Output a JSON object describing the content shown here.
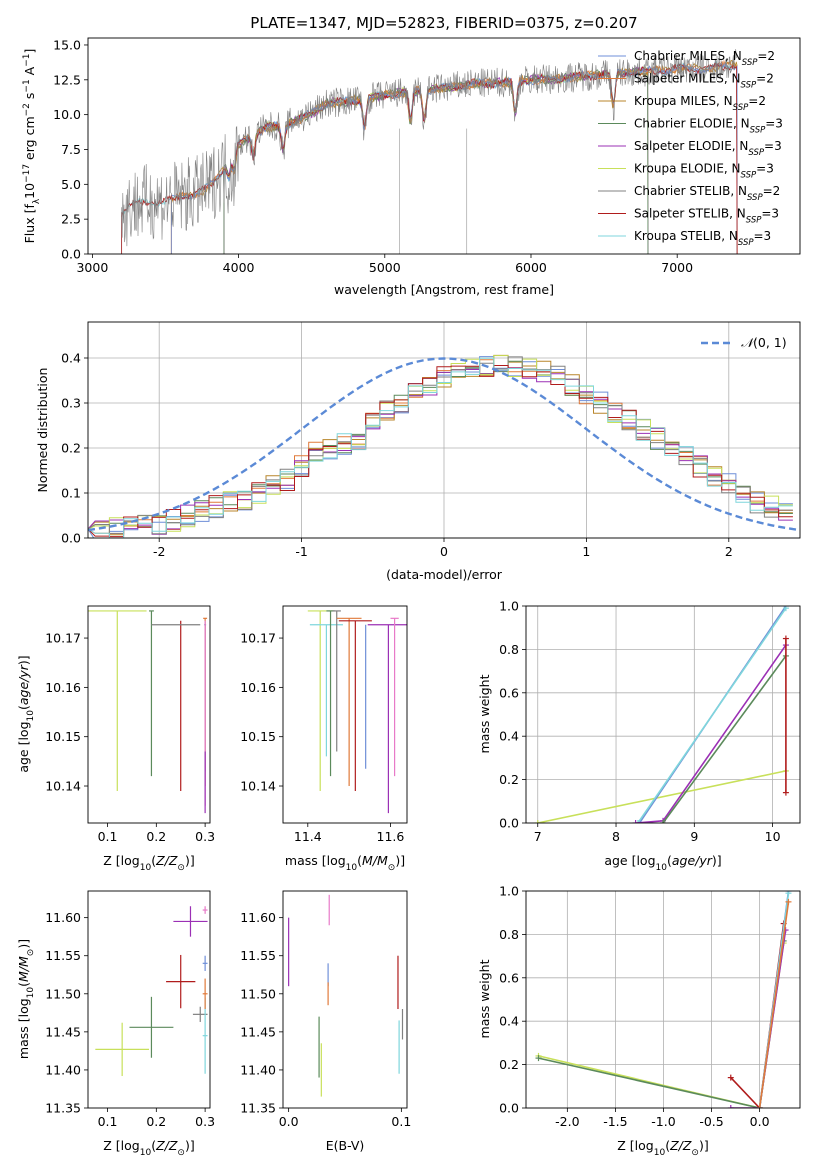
{
  "figure_title": "PLATE=1347, MJD=52823, FIBERID=0375, z=0.207",
  "colors": {
    "Chabrier MILES": "#6f8fd8",
    "Salpeter MILES": "#e07a3a",
    "Kroupa MILES": "#b8862b",
    "Chabrier ELODIE": "#5b8a5b",
    "Salpeter ELODIE": "#9b30b5",
    "Kroupa ELODIE": "#c8e05a",
    "Chabrier STELIB": "#808080",
    "Salpeter STELIB": "#b01c1c",
    "Kroupa STELIB": "#7fd6dc",
    "Extra pink": "#e87ac8",
    "Normal": "#5b8ad6"
  },
  "chart_data": [
    {
      "id": "spectrum",
      "type": "line",
      "title": "PLATE=1347, MJD=52823, FIBERID=0375, z=0.207",
      "xlabel": "wavelength [Angstrom, rest frame]",
      "ylabel": "Flux [f_λ 10^-17 erg cm^-2 s^-1 A^-1]",
      "xlim": [
        2970,
        7840
      ],
      "ylim": [
        0,
        15.5
      ],
      "xticks": [
        3000,
        4000,
        5000,
        6000,
        7000
      ],
      "yticks": [
        0.0,
        2.5,
        5.0,
        7.5,
        10.0,
        12.5,
        15.0
      ],
      "legend_position": "top-right",
      "legend": [
        "Chabrier MILES, N_SSP=2",
        "Salpeter MILES, N_SSP=2",
        "Kroupa MILES, N_SSP=2",
        "Chabrier ELODIE, N_SSP=3",
        "Salpeter ELODIE, N_SSP=3",
        "Kroupa ELODIE, N_SSP=3",
        "Chabrier STELIB, N_SSP=2",
        "Salpeter STELIB, N_SSP=3",
        "Kroupa STELIB, N_SSP=3"
      ],
      "continuum": {
        "x": [
          3200,
          3250,
          3300,
          3400,
          3500,
          3600,
          3700,
          3800,
          3900,
          4000,
          4100,
          4200,
          4300,
          4400,
          4500,
          4600,
          4800,
          5000,
          5200,
          5400,
          5600,
          5800,
          6000,
          6200,
          6400,
          6600,
          6800,
          7000,
          7200,
          7400,
          7500
        ],
        "y": [
          3.0,
          3.4,
          3.6,
          3.8,
          3.7,
          4.1,
          4.3,
          4.8,
          6.1,
          7.9,
          8.6,
          9.1,
          9.2,
          9.6,
          10.1,
          10.8,
          11.0,
          11.4,
          11.7,
          11.9,
          12.2,
          12.3,
          12.5,
          12.6,
          12.8,
          13.0,
          13.1,
          13.3,
          13.3,
          13.6,
          13.8
        ]
      },
      "absorption_lines": [
        3934,
        3969,
        4101,
        4304,
        4861,
        5175,
        5270,
        5892,
        6563
      ]
    },
    {
      "id": "residuals",
      "type": "line",
      "xlabel": "(data-model)/error",
      "ylabel": "Normed distribution",
      "xlim": [
        -2.5,
        2.5
      ],
      "ylim": [
        0,
        0.48
      ],
      "xticks": [
        -2,
        -1,
        0,
        1,
        2
      ],
      "yticks": [
        0.0,
        0.1,
        0.2,
        0.3,
        0.4
      ],
      "legend": [
        "N(0,1)"
      ],
      "legend_position": "top-right",
      "normal": {
        "mean": 0,
        "sigma": 1
      },
      "histogram": {
        "x": [
          -2.4,
          -2.3,
          -2.2,
          -2.1,
          -2.0,
          -1.9,
          -1.8,
          -1.7,
          -1.6,
          -1.5,
          -1.4,
          -1.3,
          -1.2,
          -1.1,
          -1.0,
          -0.9,
          -0.8,
          -0.7,
          -0.6,
          -0.5,
          -0.4,
          -0.3,
          -0.2,
          -0.1,
          0.0,
          0.1,
          0.2,
          0.3,
          0.4,
          0.5,
          0.6,
          0.7,
          0.8,
          0.9,
          1.0,
          1.1,
          1.2,
          1.3,
          1.4,
          1.5,
          1.6,
          1.7,
          1.8,
          1.9,
          2.0,
          2.1,
          2.2,
          2.3,
          2.4
        ],
        "y": [
          0.02,
          0.02,
          0.03,
          0.03,
          0.03,
          0.04,
          0.05,
          0.06,
          0.07,
          0.08,
          0.08,
          0.1,
          0.12,
          0.13,
          0.16,
          0.19,
          0.2,
          0.21,
          0.22,
          0.26,
          0.28,
          0.3,
          0.33,
          0.34,
          0.36,
          0.37,
          0.38,
          0.38,
          0.39,
          0.38,
          0.38,
          0.37,
          0.36,
          0.34,
          0.32,
          0.3,
          0.28,
          0.26,
          0.24,
          0.22,
          0.2,
          0.18,
          0.16,
          0.14,
          0.12,
          0.1,
          0.08,
          0.07,
          0.06
        ]
      }
    },
    {
      "id": "age-vs-Z",
      "type": "scatter",
      "xlabel": "Z [log10(Z/Z_sun)]",
      "ylabel": "age [log10(age/yr)]",
      "xlim": [
        0.06,
        0.31
      ],
      "ylim": [
        10.1325,
        10.1765
      ],
      "xticks": [
        0.1,
        0.2,
        0.3
      ],
      "yticks": [
        10.14,
        10.15,
        10.16,
        10.17
      ],
      "points": [
        {
          "model": "Kroupa ELODIE",
          "x": 0.12,
          "xerr": 0.06,
          "y": 10.1755,
          "ylo": 10.139
        },
        {
          "model": "Chabrier ELODIE",
          "x": 0.19,
          "xerr": 0.005,
          "y": 10.1755,
          "ylo": 10.142
        },
        {
          "model": "Salpeter STELIB",
          "x": 0.25,
          "xerr": 0.0,
          "y": 10.1735,
          "ylo": 10.139
        },
        {
          "model": "Chabrier STELIB",
          "x": 0.24,
          "xerr": 0.05,
          "y": 10.1727,
          "ylo": 10.1727
        },
        {
          "model": "Chabrier MILES",
          "x": 0.3,
          "xerr": 0.002,
          "y": 10.1727,
          "ylo": 10.143
        },
        {
          "model": "Salpeter MILES",
          "x": 0.3,
          "xerr": 0.004,
          "y": 10.174,
          "ylo": 10.14
        },
        {
          "model": "Extra pink",
          "x": 0.3,
          "xerr": 0.0,
          "y": 10.1735,
          "ylo": 10.136
        },
        {
          "model": "Salpeter ELODIE",
          "x": 0.3,
          "xerr": 0.0,
          "y": 10.147,
          "ylo": 10.1345
        }
      ]
    },
    {
      "id": "age-vs-mass",
      "type": "scatter",
      "xlabel": "mass [log10(M/M_sun)]",
      "ylabel": "",
      "xlim": [
        11.34,
        11.64
      ],
      "ylim": [
        10.1325,
        10.1765
      ],
      "xticks": [
        11.4,
        11.6
      ],
      "yticks": [
        10.14,
        10.15,
        10.16,
        10.17
      ],
      "points": [
        {
          "model": "Kroupa ELODIE",
          "x": 11.43,
          "xerr": 0.03,
          "y": 10.1755,
          "ylo": 10.139
        },
        {
          "model": "Kroupa STELIB",
          "x": 11.445,
          "xerr": 0.04,
          "y": 10.1727,
          "ylo": 10.146
        },
        {
          "model": "Chabrier ELODIE",
          "x": 11.455,
          "xerr": 0.01,
          "y": 10.1755,
          "ylo": 10.142
        },
        {
          "model": "Chabrier STELIB",
          "x": 11.47,
          "xerr": 0.01,
          "y": 10.1755,
          "ylo": 10.147
        },
        {
          "model": "Salpeter MILES",
          "x": 11.5,
          "xerr": 0.03,
          "y": 10.174,
          "ylo": 10.14
        },
        {
          "model": "Salpeter STELIB",
          "x": 11.515,
          "xerr": 0.04,
          "y": 10.1735,
          "ylo": 10.139
        },
        {
          "model": "Chabrier MILES",
          "x": 11.54,
          "xerr": 0.0,
          "y": 10.1727,
          "ylo": 10.1435
        },
        {
          "model": "Salpeter ELODIE",
          "x": 11.595,
          "xerr": 0.05,
          "y": 10.1727,
          "ylo": 10.1345
        },
        {
          "model": "Extra pink",
          "x": 11.61,
          "xerr": 0.01,
          "y": 10.174,
          "ylo": 10.142
        }
      ]
    },
    {
      "id": "massweight-vs-age",
      "type": "line",
      "xlabel": "age [log10(age/yr)]",
      "ylabel": "mass weight",
      "xlim": [
        6.85,
        10.35
      ],
      "ylim": [
        0,
        1.0
      ],
      "xticks": [
        7,
        8,
        9,
        10
      ],
      "yticks": [
        0.0,
        0.2,
        0.4,
        0.6,
        0.8,
        1.0
      ],
      "series": [
        {
          "model": "Kroupa ELODIE",
          "x": [
            7.0,
            10.17
          ],
          "y": [
            0.0,
            0.24
          ]
        },
        {
          "model": "Chabrier MILES",
          "x": [
            8.3,
            10.17
          ],
          "y": [
            0.0,
            1.0
          ]
        },
        {
          "model": "Kroupa STELIB",
          "x": [
            8.28,
            10.17
          ],
          "y": [
            0.0,
            0.99
          ]
        },
        {
          "model": "Salpeter ELODIE",
          "x": [
            8.25,
            8.6,
            10.17
          ],
          "y": [
            0.0,
            0.01,
            0.82
          ]
        },
        {
          "model": "Chabrier ELODIE",
          "x": [
            8.6,
            10.17
          ],
          "y": [
            0.0,
            0.77
          ]
        },
        {
          "model": "Salpeter STELIB",
          "x": [
            10.17,
            10.17
          ],
          "y": [
            0.14,
            0.85
          ]
        }
      ]
    },
    {
      "id": "mass-vs-Z",
      "type": "scatter",
      "xlabel": "Z [log10(Z/Z_sun)]",
      "ylabel": "mass [log10(M/M_sun)]",
      "xlim": [
        0.06,
        0.31
      ],
      "ylim": [
        11.35,
        11.635
      ],
      "xticks": [
        0.1,
        0.2,
        0.3
      ],
      "yticks": [
        11.35,
        11.4,
        11.45,
        11.5,
        11.55,
        11.6
      ],
      "points": [
        {
          "model": "Kroupa ELODIE",
          "x": 0.13,
          "xerr": 0.055,
          "y": 11.427,
          "yerr": 0.035
        },
        {
          "model": "Chabrier ELODIE",
          "x": 0.19,
          "xerr": 0.045,
          "y": 11.456,
          "yerr": 0.04
        },
        {
          "model": "Salpeter STELIB",
          "x": 0.25,
          "xerr": 0.03,
          "y": 11.516,
          "yerr": 0.035
        },
        {
          "model": "Chabrier STELIB",
          "x": 0.29,
          "xerr": 0.015,
          "y": 11.473,
          "yerr": 0.01
        },
        {
          "model": "Salpeter ELODIE",
          "x": 0.27,
          "xerr": 0.035,
          "y": 11.595,
          "yerr": 0.02
        },
        {
          "model": "Kroupa STELIB",
          "x": 0.3,
          "xerr": 0.005,
          "y": 11.445,
          "yerr": 0.05
        },
        {
          "model": "Salpeter MILES",
          "x": 0.3,
          "xerr": 0.005,
          "y": 11.5,
          "yerr": 0.02
        },
        {
          "model": "Chabrier MILES",
          "x": 0.3,
          "xerr": 0.005,
          "y": 11.54,
          "yerr": 0.01
        },
        {
          "model": "Extra pink",
          "x": 0.3,
          "xerr": 0.005,
          "y": 11.61,
          "yerr": 0.005
        }
      ]
    },
    {
      "id": "mass-vs-ebv",
      "type": "scatter",
      "xlabel": "E(B-V)",
      "ylabel": "",
      "xlim": [
        -0.005,
        0.105
      ],
      "ylim": [
        11.35,
        11.635
      ],
      "xticks": [
        0.0,
        0.1
      ],
      "yticks": [
        11.35,
        11.4,
        11.45,
        11.5,
        11.55,
        11.6
      ],
      "points": [
        {
          "model": "Salpeter ELODIE",
          "x": 0.0,
          "y": 11.555,
          "yerr": 0.045
        },
        {
          "model": "Chabrier ELODIE",
          "x": 0.027,
          "y": 11.43,
          "yerr": 0.04
        },
        {
          "model": "Kroupa ELODIE",
          "x": 0.029,
          "y": 11.4,
          "yerr": 0.035
        },
        {
          "model": "Extra pink",
          "x": 0.036,
          "y": 11.61,
          "yerr": 0.02
        },
        {
          "model": "Chabrier MILES",
          "x": 0.035,
          "y": 11.525,
          "yerr": 0.015
        },
        {
          "model": "Salpeter MILES",
          "x": 0.035,
          "y": 11.5,
          "yerr": 0.015
        },
        {
          "model": "Salpeter STELIB",
          "x": 0.097,
          "y": 11.515,
          "yerr": 0.035
        },
        {
          "model": "Kroupa STELIB",
          "x": 0.098,
          "y": 11.43,
          "yerr": 0.035
        },
        {
          "model": "Chabrier STELIB",
          "x": 0.101,
          "y": 11.46,
          "yerr": 0.02
        }
      ]
    },
    {
      "id": "massweight-vs-Z",
      "type": "line",
      "xlabel": "Z [log10(Z/Z_sun)]",
      "ylabel": "mass weight",
      "xlim": [
        -2.43,
        0.42
      ],
      "ylim": [
        0,
        1.0
      ],
      "xticks": [
        -2.0,
        -1.5,
        -1.0,
        -0.5,
        0.0
      ],
      "yticks": [
        0.0,
        0.2,
        0.4,
        0.6,
        0.8,
        1.0
      ],
      "series": [
        {
          "model": "Kroupa ELODIE",
          "x": [
            -2.3,
            0.0,
            0.25
          ],
          "y": [
            0.24,
            0.0,
            0.76
          ]
        },
        {
          "model": "Chabrier ELODIE",
          "x": [
            -2.3,
            0.0,
            0.25
          ],
          "y": [
            0.23,
            0.0,
            0.77
          ]
        },
        {
          "model": "Salpeter STELIB",
          "x": [
            -0.3,
            0.0,
            0.25
          ],
          "y": [
            0.14,
            0.0,
            0.85
          ]
        },
        {
          "model": "Salpeter ELODIE",
          "x": [
            -0.3,
            0.0,
            0.27
          ],
          "y": [
            0.0,
            0.0,
            0.82
          ]
        },
        {
          "model": "Chabrier MILES",
          "x": [
            0.0,
            0.3
          ],
          "y": [
            0.0,
            1.0
          ]
        },
        {
          "model": "Kroupa STELIB",
          "x": [
            0.0,
            0.3
          ],
          "y": [
            0.0,
            0.99
          ]
        },
        {
          "model": "Salpeter MILES",
          "x": [
            0.0,
            0.3
          ],
          "y": [
            0.0,
            0.95
          ]
        }
      ]
    }
  ]
}
